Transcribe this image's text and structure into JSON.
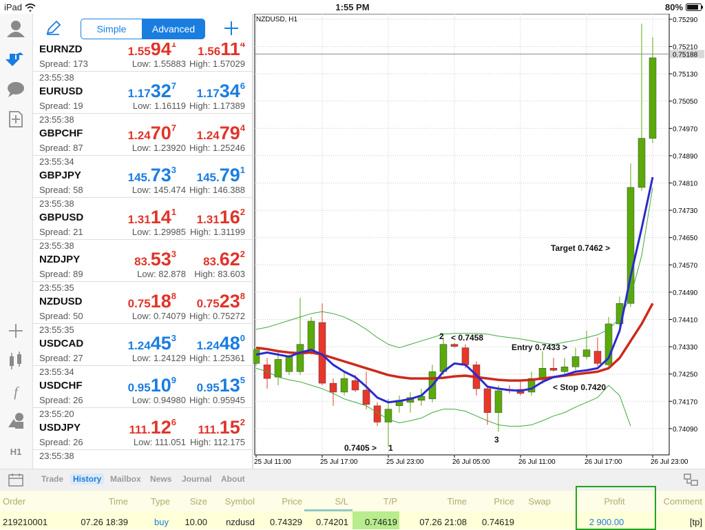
{
  "status_bar": {
    "device": "iPad",
    "time": "1:55 PM",
    "battery": "80%"
  },
  "toolbar": {
    "simple": "Simple",
    "advanced": "Advanced"
  },
  "sidebar": {
    "timeframe": "H1"
  },
  "quotes": [
    {
      "symbol": "EURNZD",
      "bid": [
        "1.55",
        "94",
        "1"
      ],
      "ask": [
        "1.56",
        "11",
        "4"
      ],
      "spread": "Spread: 173",
      "low": "Low: 1.55883",
      "high": "High: 1.57029",
      "color": "#e0342a"
    },
    {
      "time": "23:55:38",
      "symbol": "EURUSD",
      "bid": [
        "1.17",
        "32",
        "7"
      ],
      "ask": [
        "1.17",
        "34",
        "6"
      ],
      "spread": "Spread: 19",
      "low": "Low: 1.16119",
      "high": "High: 1.17389",
      "color": "#1a7de0"
    },
    {
      "time": "23:55:38",
      "symbol": "GBPCHF",
      "bid": [
        "1.24",
        "70",
        "7"
      ],
      "ask": [
        "1.24",
        "79",
        "4"
      ],
      "spread": "Spread: 87",
      "low": "Low: 1.23920",
      "high": "High: 1.25246",
      "color": "#e0342a"
    },
    {
      "time": "23:55:34",
      "symbol": "GBPJPY",
      "bid": [
        "145.",
        "73",
        "3"
      ],
      "ask": [
        "145.",
        "79",
        "1"
      ],
      "spread": "Spread: 58",
      "low": "Low: 145.474",
      "high": "High: 146.388",
      "color": "#1a7de0"
    },
    {
      "time": "23:55:38",
      "symbol": "GBPUSD",
      "bid": [
        "1.31",
        "14",
        "1"
      ],
      "ask": [
        "1.31",
        "16",
        "2"
      ],
      "spread": "Spread: 21",
      "low": "Low: 1.29985",
      "high": "High: 1.31199",
      "color": "#e0342a"
    },
    {
      "time": "23:55:38",
      "symbol": "NZDJPY",
      "bid": [
        "83.",
        "53",
        "3"
      ],
      "ask": [
        "83.",
        "62",
        "2"
      ],
      "spread": "Spread: 89",
      "low": "Low: 82.878",
      "high": "High: 83.603",
      "color": "#e0342a"
    },
    {
      "time": "23:55:35",
      "symbol": "NZDUSD",
      "bid": [
        "0.75",
        "18",
        "8"
      ],
      "ask": [
        "0.75",
        "23",
        "8"
      ],
      "spread": "Spread: 50",
      "low": "Low: 0.74079",
      "high": "High: 0.75272",
      "color": "#e0342a"
    },
    {
      "time": "23:55:35",
      "symbol": "USDCAD",
      "bid": [
        "1.24",
        "45",
        "3"
      ],
      "ask": [
        "1.24",
        "48",
        "0"
      ],
      "spread": "Spread: 27",
      "low": "Low: 1.24129",
      "high": "High: 1.25361",
      "color": "#1a7de0"
    },
    {
      "time": "23:55:34",
      "symbol": "USDCHF",
      "bid": [
        "0.95",
        "10",
        "9"
      ],
      "ask": [
        "0.95",
        "13",
        "5"
      ],
      "spread": "Spread: 26",
      "low": "Low: 0.94980",
      "high": "High: 0.95945",
      "color": "#1a7de0"
    },
    {
      "time": "23:55:20",
      "symbol": "USDJPY",
      "bid": [
        "111.",
        "12",
        "6"
      ],
      "ask": [
        "111.",
        "15",
        "2"
      ],
      "spread": "Spread: 26",
      "low": "Low: 111.051",
      "high": "High: 112.175",
      "color": "#e0342a"
    },
    {
      "time": "23:55:38"
    }
  ],
  "chart": {
    "type": "candlestick",
    "title": "NZDUSD, H1",
    "up_color": "#5aaa0a",
    "down_color": "#e8372a",
    "categories": [
      "25 Jul 11:00",
      null,
      null,
      null,
      null,
      null,
      "25 Jul 17:00",
      null,
      null,
      null,
      null,
      null,
      "25 Jul 23:00",
      null,
      null,
      null,
      null,
      null,
      "26 Jul 05:00",
      null,
      null,
      null,
      null,
      null,
      "26 Jul 11:00",
      null,
      null,
      null,
      null,
      null,
      "26 Jul 17:00",
      null,
      null,
      null,
      null,
      null,
      "26 Jul 23:00"
    ],
    "open": [
      0.74281,
      0.74277,
      0.74241,
      0.74257,
      0.74257,
      0.74317,
      0.74401,
      0.74223,
      0.74197,
      0.74231,
      0.74203,
      0.74157,
      0.74109,
      0.74157,
      0.74167,
      0.74173,
      0.74177,
      0.74257,
      0.74337,
      0.74327,
      0.74277,
      0.74207,
      0.74137,
      0.74205,
      0.74205,
      0.74197,
      0.74233,
      0.74267,
      0.74257,
      0.74271,
      0.74301,
      0.74317,
      0.74277,
      0.74397,
      0.74457,
      0.74797,
      0.74941
    ],
    "high": [
      0.74327,
      0.74297,
      0.74317,
      0.74307,
      0.74473,
      0.74417,
      0.74457,
      0.74237,
      0.74257,
      0.74247,
      0.74257,
      0.74167,
      0.74177,
      0.74187,
      0.74197,
      0.74207,
      0.74277,
      0.74357,
      0.74341,
      0.74337,
      0.74287,
      0.74217,
      0.74217,
      0.74217,
      0.74227,
      0.74257,
      0.74317,
      0.74297,
      0.74297,
      0.74327,
      0.74377,
      0.74357,
      0.74417,
      0.74477,
      0.74867,
      0.75277,
      0.75237
    ],
    "low": [
      0.74273,
      0.74207,
      0.74217,
      0.74247,
      0.74247,
      0.74307,
      0.74217,
      0.74157,
      0.74187,
      0.74197,
      0.74147,
      0.74097,
      0.74037,
      0.74137,
      0.74137,
      0.74157,
      0.74167,
      0.74247,
      0.74327,
      0.74267,
      0.74187,
      0.74101,
      0.74081,
      0.74193,
      0.74187,
      0.74187,
      0.74221,
      0.74257,
      0.74247,
      0.74261,
      0.74293,
      0.74273,
      0.74267,
      0.74387,
      0.74447,
      0.74787,
      0.74927
    ],
    "close": [
      0.74321,
      0.74237,
      0.74293,
      0.74301,
      0.74337,
      0.74405,
      0.74223,
      0.74197,
      0.74237,
      0.74203,
      0.74161,
      0.74109,
      0.74147,
      0.74173,
      0.74181,
      0.74185,
      0.74257,
      0.74337,
      0.74331,
      0.74277,
      0.74207,
      0.74137,
      0.74201,
      0.74201,
      0.74193,
      0.74237,
      0.74267,
      0.74261,
      0.74271,
      0.74301,
      0.74321,
      0.74281,
      0.74397,
      0.74457,
      0.74797,
      0.74941,
      0.75177
    ],
    "series": [
      {
        "color": "#3ea83e",
        "width": 1,
        "values": [
          0.74381,
          0.74387,
          0.74397,
          0.74407,
          0.74417,
          0.74427,
          0.74433,
          0.74427,
          0.74417,
          0.74401,
          0.74381,
          0.74357,
          0.74337,
          0.74327,
          0.74337,
          0.74347,
          0.74357,
          0.74367,
          0.74369,
          0.74369,
          0.74369,
          0.74367,
          0.74361,
          0.74357,
          0.74353,
          0.74347,
          0.74341,
          0.74337,
          0.74343,
          0.74349,
          0.74357,
          0.74365,
          0.74381,
          0.74413,
          0.74477,
          0.74597,
          0.74797
        ]
      },
      {
        "color": "#3ea83e",
        "width": 1,
        "values": [
          0.74267,
          0.74257,
          0.74241,
          0.74233,
          0.74227,
          0.74217,
          0.74207,
          0.74193,
          0.74177,
          0.74167,
          0.74157,
          0.74137,
          0.74117,
          0.74107,
          0.74113,
          0.74121,
          0.74137,
          0.74147,
          0.74147,
          0.74141,
          0.74127,
          0.74113,
          0.74101,
          0.74097,
          0.74097,
          0.74101,
          0.74113,
          0.74127,
          0.74137,
          0.74153,
          0.74167,
          0.74181,
          0.74217,
          0.74187,
          0.74097,
          null,
          null
        ]
      },
      {
        "color": "#cc2a1a",
        "width": 3.5,
        "values": [
          0.74327,
          0.74323,
          0.74317,
          0.74313,
          0.74311,
          0.74313,
          0.74307,
          0.74297,
          0.74287,
          0.74277,
          0.74267,
          0.74257,
          0.74247,
          0.74241,
          0.74237,
          0.74237,
          0.74237,
          0.74239,
          0.74243,
          0.74245,
          0.74241,
          0.74237,
          0.74233,
          0.74231,
          0.74231,
          0.74233,
          0.74237,
          0.74241,
          0.74245,
          0.74249,
          0.74253,
          0.74257,
          0.74267,
          0.74297,
          0.74347,
          0.74397,
          0.74457
        ]
      },
      {
        "color": "#2a2ad0",
        "width": 3,
        "values": [
          0.74307,
          0.74313,
          0.74307,
          0.74301,
          0.74313,
          0.74321,
          0.74307,
          0.74277,
          0.74257,
          0.74241,
          0.74213,
          0.74181,
          0.74167,
          0.74171,
          0.74177,
          0.74187,
          0.74217,
          0.74257,
          0.74281,
          0.74277,
          0.74247,
          0.74213,
          0.74207,
          0.74203,
          0.74201,
          0.74207,
          0.74227,
          0.74241,
          0.74247,
          0.74257,
          0.74261,
          0.74267,
          0.74297,
          0.74377,
          0.74537,
          0.74677,
          0.74827
        ]
      }
    ],
    "current_price": 0.75188,
    "ylim": [
      0.74013,
      0.75306
    ],
    "yticks": [
      {
        "value": 0.7529,
        "label": "0.75290"
      },
      {
        "value": 0.7521,
        "label": "0.75210"
      },
      {
        "value": 0.7513,
        "label": "0.75130"
      },
      {
        "value": 0.7505,
        "label": "0.75050"
      },
      {
        "value": 0.7497,
        "label": "0.74970"
      },
      {
        "value": 0.7489,
        "label": "0.74890"
      },
      {
        "value": 0.7481,
        "label": "0.74810"
      },
      {
        "value": 0.7473,
        "label": "0.74730"
      },
      {
        "value": 0.7465,
        "label": "0.74650"
      },
      {
        "value": 0.7457,
        "label": "0.74570"
      },
      {
        "value": 0.7449,
        "label": "0.74490"
      },
      {
        "value": 0.7441,
        "label": "0.74410"
      },
      {
        "value": 0.7433,
        "label": "0.74330"
      },
      {
        "value": 0.7425,
        "label": "0.74250"
      },
      {
        "value": 0.7417,
        "label": "0.74170"
      },
      {
        "value": 0.7409,
        "label": "0.74090"
      }
    ],
    "grid": true,
    "annotations": [
      "Target 0.7462 >",
      "Entry 0.7433 >",
      "< Stop 0.7420",
      "2",
      "< 0.7458",
      "0.7405 >",
      "1",
      "3"
    ]
  },
  "tabs": {
    "items": [
      "Trade",
      "History",
      "Mailbox",
      "News",
      "Journal",
      "About"
    ],
    "active": 1
  },
  "table": {
    "columns": [
      "Order",
      "Time",
      "Type",
      "Size",
      "Symbol",
      "Price",
      "S/L",
      "T/P",
      "Time",
      "Price",
      "Swap",
      "Profit",
      "Comment"
    ],
    "rows": [
      [
        "219210001",
        "07.26 18:39",
        "buy",
        "10.00",
        "nzdusd",
        "0.74329",
        "0.74201",
        "0.74619",
        "07.26 21:08",
        "0.74619",
        null,
        "2 900.00",
        "[tp]"
      ]
    ]
  }
}
